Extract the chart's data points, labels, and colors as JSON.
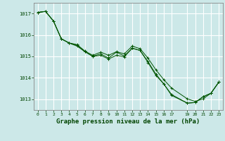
{
  "background_color": "#cce8e8",
  "grid_color": "#ffffff",
  "line_color": "#005500",
  "marker_color": "#005500",
  "title": "Graphe pression niveau de la mer (hPa)",
  "title_fontsize": 6.5,
  "title_color": "#004400",
  "ylim": [
    1012.5,
    1017.5
  ],
  "xlim": [
    -0.5,
    23.5
  ],
  "yticks": [
    1013,
    1014,
    1015,
    1016,
    1017
  ],
  "xticks": [
    0,
    1,
    2,
    3,
    4,
    5,
    6,
    7,
    8,
    9,
    10,
    11,
    12,
    13,
    14,
    15,
    16,
    17,
    19,
    20,
    21,
    22,
    23
  ],
  "series1_x": [
    0,
    1,
    2,
    3,
    4,
    5,
    6,
    7,
    8,
    9,
    10,
    11,
    12,
    13,
    14,
    15,
    16,
    17,
    19,
    20,
    21,
    22,
    23
  ],
  "series1_y": [
    1017.05,
    1017.1,
    1016.65,
    1015.82,
    1015.63,
    1015.55,
    1015.25,
    1015.05,
    1015.2,
    1015.05,
    1015.22,
    1015.12,
    1015.48,
    1015.36,
    1014.92,
    1014.38,
    1013.92,
    1013.52,
    1013.02,
    1012.9,
    1013.02,
    1013.28,
    1013.8
  ],
  "series2_x": [
    0,
    1,
    2,
    3,
    4,
    5,
    6,
    7,
    8,
    9,
    10,
    11,
    12,
    13,
    14,
    15,
    16,
    17,
    19,
    20,
    21,
    22,
    23
  ],
  "series2_y": [
    1017.05,
    1017.1,
    1016.65,
    1015.82,
    1015.62,
    1015.52,
    1015.22,
    1015.0,
    1015.05,
    1014.88,
    1015.05,
    1014.98,
    1015.38,
    1015.28,
    1014.72,
    1014.12,
    1013.72,
    1013.18,
    1012.82,
    1012.85,
    1013.12,
    1013.28,
    1013.8
  ],
  "series3_x": [
    0,
    1,
    2,
    3,
    4,
    5,
    6,
    7,
    8,
    9,
    10,
    11,
    12,
    13,
    14,
    15,
    16,
    17,
    19,
    20,
    21,
    22,
    23
  ],
  "series3_y": [
    1017.05,
    1017.1,
    1016.65,
    1015.82,
    1015.62,
    1015.48,
    1015.22,
    1015.0,
    1015.12,
    1014.92,
    1015.2,
    1015.02,
    1015.38,
    1015.28,
    1014.76,
    1014.18,
    1013.72,
    1013.22,
    1012.82,
    1012.85,
    1013.12,
    1013.28,
    1013.8
  ]
}
